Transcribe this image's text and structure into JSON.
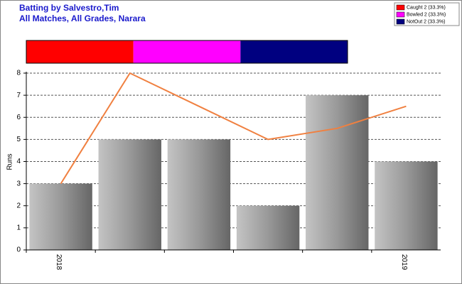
{
  "chart_data": [
    {
      "type": "bar",
      "title": "Batting by Salvestro,Tim",
      "subtitle": "All Matches, All Grades, Narara",
      "ylabel": "Runs",
      "categories": [
        "2018",
        null,
        null,
        null,
        null,
        "2019"
      ],
      "series": [
        {
          "type": "bar",
          "color": "#909090",
          "values": [
            3,
            5,
            5,
            2,
            7,
            4
          ]
        },
        {
          "type": "line",
          "color": "#f08040",
          "values": [
            3,
            8,
            6.5,
            5,
            5.5,
            6.5
          ]
        }
      ],
      "ylim": [
        0,
        8
      ],
      "yticks": [
        0,
        1,
        2,
        3,
        4,
        5,
        6,
        7,
        8
      ],
      "grid": true
    },
    {
      "type": "proportion",
      "series": [
        {
          "name": "Caught 2 (33.3%)",
          "color": "#ff0000",
          "value": 2
        },
        {
          "name": "Bowled 2 (33.3%)",
          "color": "#ff00ff",
          "value": 2
        },
        {
          "name": "NotOut 2 (33.3%)",
          "color": "#000080",
          "value": 2
        }
      ],
      "legend": "top-right"
    }
  ]
}
